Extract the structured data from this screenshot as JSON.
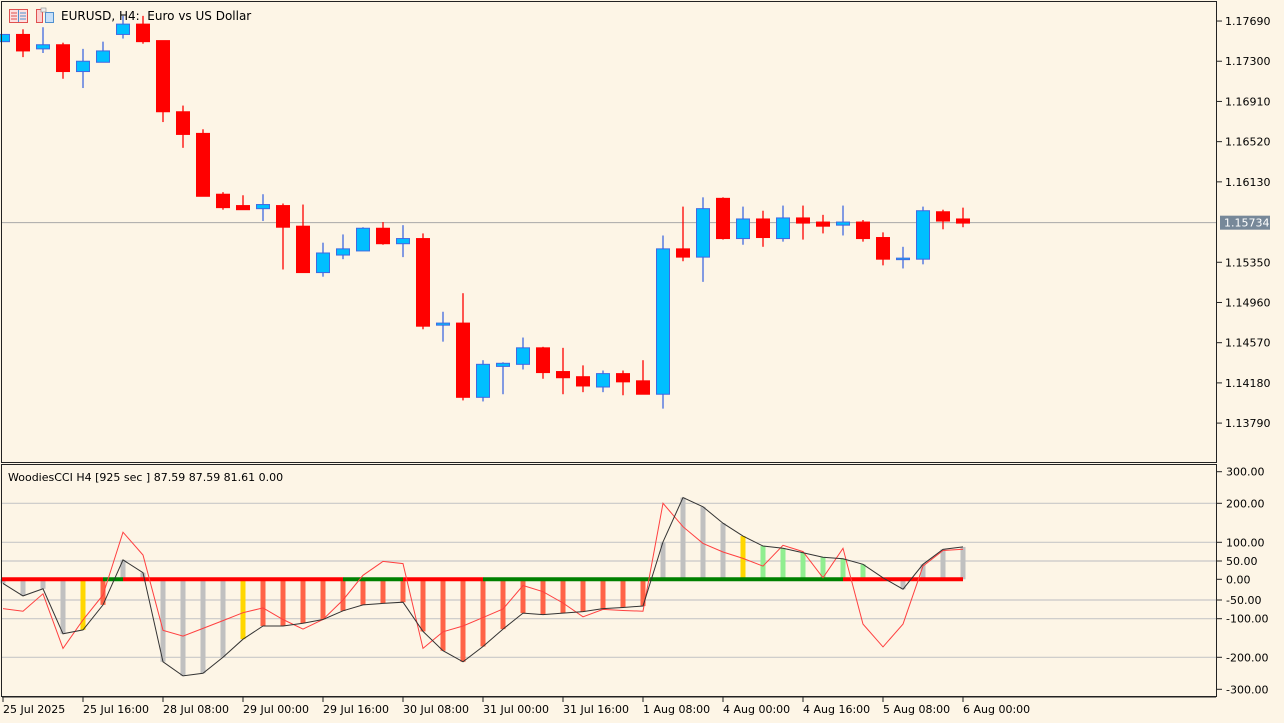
{
  "header": {
    "symbol_title": "EURUSD, H4:  Euro vs US Dollar",
    "icons": [
      "indicator-list-icon",
      "template-icon"
    ]
  },
  "indicator": {
    "label": "WoodiesCCI H4 [925 sec ] 87.59 87.59 81.61 0.00"
  },
  "colors": {
    "background": "#FDF5E6",
    "bull_fill": "#00BFFF",
    "bull_border": "#4169E1",
    "bear": "#FF0000",
    "hist_gray": "#C0C0C0",
    "hist_red": "#FF6347",
    "hist_yellow": "#FFD700",
    "hist_green": "#90EE90",
    "zero_red": "#FF0000",
    "zero_green": "#008000",
    "cci_line": "#333333",
    "tcci_line": "#FF4040",
    "current_price_bg": "#778899"
  },
  "chart_data": [
    {
      "type": "candlestick",
      "symbol": "EURUSD",
      "timeframe": "H4",
      "ylim": [
        1.137,
        1.1785
      ],
      "current_price": "1.15734",
      "price_ticks": [
        "1.17690",
        "1.17300",
        "1.16910",
        "1.16520",
        "1.16130",
        "1.15350",
        "1.14960",
        "1.14570",
        "1.14180",
        "1.13790"
      ],
      "candles_ohlc": [
        [
          1.1749,
          1.1756,
          1.1749,
          1.1756
        ],
        [
          1.1756,
          1.1761,
          1.1734,
          1.174
        ],
        [
          1.1742,
          1.1763,
          1.1738,
          1.1746
        ],
        [
          1.1746,
          1.1748,
          1.1713,
          1.172
        ],
        [
          1.172,
          1.1742,
          1.1704,
          1.173
        ],
        [
          1.1729,
          1.1749,
          1.1729,
          1.174
        ],
        [
          1.1756,
          1.1774,
          1.1752,
          1.1766
        ],
        [
          1.1766,
          1.1774,
          1.1747,
          1.1749
        ],
        [
          1.175,
          1.175,
          1.1671,
          1.1681
        ],
        [
          1.1681,
          1.1687,
          1.1646,
          1.1659
        ],
        [
          1.166,
          1.1664,
          1.1599,
          1.1599
        ],
        [
          1.1601,
          1.1603,
          1.1586,
          1.1588
        ],
        [
          1.159,
          1.16,
          1.1586,
          1.1586
        ],
        [
          1.1587,
          1.1601,
          1.1575,
          1.1591
        ],
        [
          1.159,
          1.1592,
          1.1528,
          1.1569
        ],
        [
          1.157,
          1.1591,
          1.1525,
          1.1525
        ],
        [
          1.1525,
          1.1554,
          1.1521,
          1.1544
        ],
        [
          1.1542,
          1.1562,
          1.1538,
          1.1548
        ],
        [
          1.1546,
          1.1569,
          1.1546,
          1.1568
        ],
        [
          1.1568,
          1.1574,
          1.1552,
          1.1553
        ],
        [
          1.1553,
          1.1571,
          1.154,
          1.1558
        ],
        [
          1.1558,
          1.1563,
          1.147,
          1.1473
        ],
        [
          1.1474,
          1.1487,
          1.1458,
          1.1476
        ],
        [
          1.1476,
          1.1505,
          1.1401,
          1.1404
        ],
        [
          1.1404,
          1.144,
          1.14,
          1.1436
        ],
        [
          1.1434,
          1.1438,
          1.1407,
          1.1437
        ],
        [
          1.1436,
          1.1462,
          1.1431,
          1.1452
        ],
        [
          1.1452,
          1.1453,
          1.1422,
          1.1428
        ],
        [
          1.1429,
          1.1452,
          1.1407,
          1.1423
        ],
        [
          1.1424,
          1.1435,
          1.1409,
          1.1415
        ],
        [
          1.1414,
          1.143,
          1.1409,
          1.1427
        ],
        [
          1.1427,
          1.143,
          1.1406,
          1.1419
        ],
        [
          1.142,
          1.144,
          1.1407,
          1.1407
        ],
        [
          1.1407,
          1.1561,
          1.1393,
          1.1548
        ],
        [
          1.1548,
          1.1589,
          1.1536,
          1.154
        ],
        [
          1.154,
          1.1598,
          1.1516,
          1.1587
        ],
        [
          1.1597,
          1.1598,
          1.1557,
          1.1558
        ],
        [
          1.1558,
          1.1589,
          1.1552,
          1.1577
        ],
        [
          1.1577,
          1.1585,
          1.155,
          1.1559
        ],
        [
          1.1558,
          1.159,
          1.1555,
          1.1578
        ],
        [
          1.1578,
          1.159,
          1.1557,
          1.1573
        ],
        [
          1.1574,
          1.1581,
          1.1563,
          1.157
        ],
        [
          1.1571,
          1.159,
          1.1561,
          1.1574
        ],
        [
          1.1574,
          1.1576,
          1.1555,
          1.1558
        ],
        [
          1.1559,
          1.1564,
          1.1532,
          1.1538
        ],
        [
          1.1538,
          1.155,
          1.1529,
          1.1539
        ],
        [
          1.1538,
          1.1589,
          1.1533,
          1.1585
        ],
        [
          1.1584,
          1.1586,
          1.1567,
          1.1575
        ],
        [
          1.1577,
          1.1588,
          1.1569,
          1.1573
        ]
      ],
      "time_labels": [
        {
          "bar": 0,
          "text": "25 Jul 2025"
        },
        {
          "bar": 4,
          "text": "25 Jul 16:00"
        },
        {
          "bar": 8,
          "text": "28 Jul 08:00"
        },
        {
          "bar": 12,
          "text": "29 Jul 00:00"
        },
        {
          "bar": 16,
          "text": "29 Jul 16:00"
        },
        {
          "bar": 20,
          "text": "30 Jul 08:00"
        },
        {
          "bar": 24,
          "text": "31 Jul 00:00"
        },
        {
          "bar": 28,
          "text": "31 Jul 16:00"
        },
        {
          "bar": 32,
          "text": "1 Aug 08:00"
        },
        {
          "bar": 36,
          "text": "4 Aug 00:00"
        },
        {
          "bar": 40,
          "text": "4 Aug 16:00"
        },
        {
          "bar": 44,
          "text": "5 Aug 08:00"
        },
        {
          "bar": 48,
          "text": "6 Aug 00:00"
        }
      ]
    },
    {
      "type": "bar+line",
      "name": "WoodiesCCI",
      "ylim": [
        -300,
        300
      ],
      "ticks": [
        "300.00",
        "200.00",
        "100.00",
        "50.00",
        "0.00",
        "-50.00",
        "-100.00",
        "-200.00",
        "-300.00"
      ],
      "gridlines": [
        200,
        100,
        50,
        -50,
        -100,
        -200
      ],
      "cci": [
        -10,
        -40,
        -23,
        -139,
        -129,
        -63,
        53,
        18,
        -214,
        -258,
        -250,
        -200,
        -153,
        -119,
        -119,
        -112,
        -102,
        -79,
        -63,
        -59,
        -56,
        -133,
        -183,
        -214,
        -172,
        -127,
        -85,
        -89,
        -85,
        -81,
        -73,
        -70,
        -66,
        101,
        218,
        191,
        149,
        116,
        90,
        84,
        72,
        60,
        56,
        41,
        4,
        -24,
        41,
        81,
        87.59
      ],
      "tcci": [
        -73,
        -80,
        -35,
        -177,
        -103,
        -38,
        126,
        66,
        -130,
        -145,
        -125,
        -105,
        -84,
        -71,
        -102,
        -127,
        -102,
        -50,
        11,
        49,
        43,
        -177,
        -134,
        -119,
        -97,
        -74,
        -15,
        -30,
        -58,
        -95,
        -75,
        -78,
        -80,
        200,
        140,
        97,
        74,
        57,
        36,
        92,
        75,
        4,
        84,
        -114,
        -173,
        -114,
        36,
        78,
        81.61
      ],
      "histogram_colors": [
        "gray",
        "gray",
        "gray",
        "gray",
        "yellow",
        "red",
        "gray",
        "gray",
        "gray",
        "gray",
        "gray",
        "gray",
        "yellow",
        "red",
        "red",
        "red",
        "red",
        "red",
        "red",
        "red",
        "red",
        "red",
        "red",
        "red",
        "red",
        "red",
        "red",
        "red",
        "red",
        "red",
        "red",
        "red",
        "red",
        "gray",
        "gray",
        "gray",
        "gray",
        "yellow",
        "green",
        "green",
        "green",
        "green",
        "green",
        "green",
        "gray",
        "gray",
        "gray",
        "gray",
        "gray"
      ],
      "zero_line_segments": [
        {
          "from": 0,
          "to": 5,
          "color": "red"
        },
        {
          "from": 5,
          "to": 6,
          "color": "green"
        },
        {
          "from": 6,
          "to": 17,
          "color": "red"
        },
        {
          "from": 17,
          "to": 20,
          "color": "green"
        },
        {
          "from": 20,
          "to": 24,
          "color": "red"
        },
        {
          "from": 24,
          "to": 42,
          "color": "green"
        },
        {
          "from": 42,
          "to": 48,
          "color": "red"
        }
      ]
    }
  ]
}
